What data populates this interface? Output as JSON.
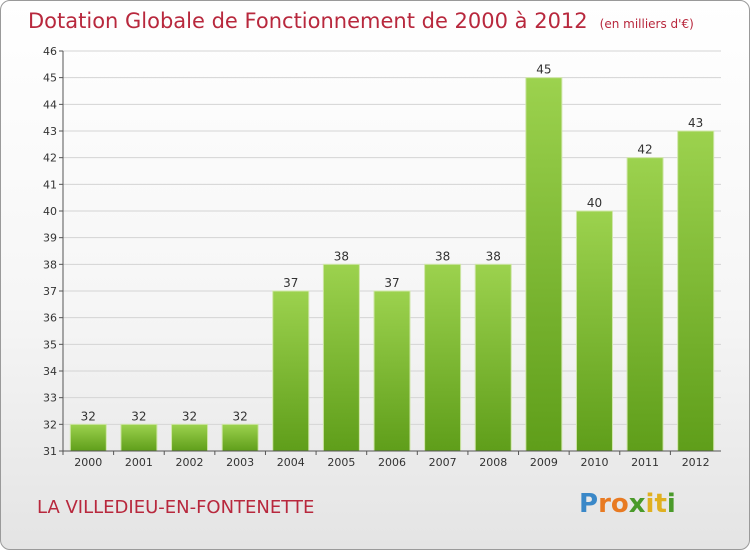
{
  "chart_data": {
    "type": "bar",
    "title": "Dotation Globale de Fonctionnement de 2000 à 2012",
    "subtitle": "(en milliers d'€)",
    "categories": [
      "2000",
      "2001",
      "2002",
      "2003",
      "2004",
      "2005",
      "2006",
      "2007",
      "2008",
      "2009",
      "2010",
      "2011",
      "2012"
    ],
    "values": [
      32,
      32,
      32,
      32,
      37,
      38,
      37,
      38,
      38,
      45,
      40,
      42,
      43
    ],
    "ylim": [
      31,
      46
    ],
    "yticks": [
      31,
      32,
      33,
      34,
      35,
      36,
      37,
      38,
      39,
      40,
      41,
      42,
      43,
      44,
      45,
      46
    ],
    "grid": true,
    "bar_color": "#7cbf2e"
  },
  "footer": {
    "commune": "LA VILLEDIEU-EN-FONTENETTE",
    "logo": "Proxiti"
  }
}
